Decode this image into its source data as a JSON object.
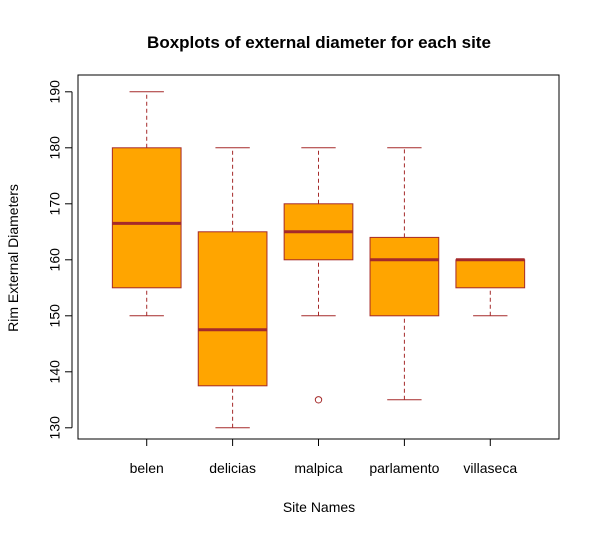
{
  "chart_data": {
    "type": "boxplot",
    "title": "Boxplots of external diameter for each site",
    "xlabel": "Site Names",
    "ylabel": "Rim External Diameters",
    "ylim": [
      128,
      193
    ],
    "yticks": [
      130,
      140,
      150,
      160,
      170,
      180,
      190
    ],
    "grid": false,
    "categories": [
      "belen",
      "delicias",
      "malpica",
      "parlamento",
      "villaseca"
    ],
    "boxes": [
      {
        "name": "belen",
        "whisker_low": 150,
        "q1": 155,
        "median": 166.5,
        "q3": 180,
        "whisker_high": 190,
        "outliers": []
      },
      {
        "name": "delicias",
        "whisker_low": 130,
        "q1": 137.5,
        "median": 147.5,
        "q3": 165,
        "whisker_high": 180,
        "outliers": []
      },
      {
        "name": "malpica",
        "whisker_low": 150,
        "q1": 160,
        "median": 165,
        "q3": 170,
        "whisker_high": 180,
        "outliers": [
          135
        ]
      },
      {
        "name": "parlamento",
        "whisker_low": 135,
        "q1": 150,
        "median": 160,
        "q3": 164,
        "whisker_high": 180,
        "outliers": []
      },
      {
        "name": "villaseca",
        "whisker_low": 150,
        "q1": 155,
        "median": 160,
        "q3": 160,
        "whisker_high": 160,
        "outliers": []
      }
    ],
    "colors": {
      "box_fill": "#FFA500",
      "border": "#A52A2A",
      "median": "#A52A2A",
      "whisker": "#A52A2A",
      "axis": "#000000"
    }
  }
}
